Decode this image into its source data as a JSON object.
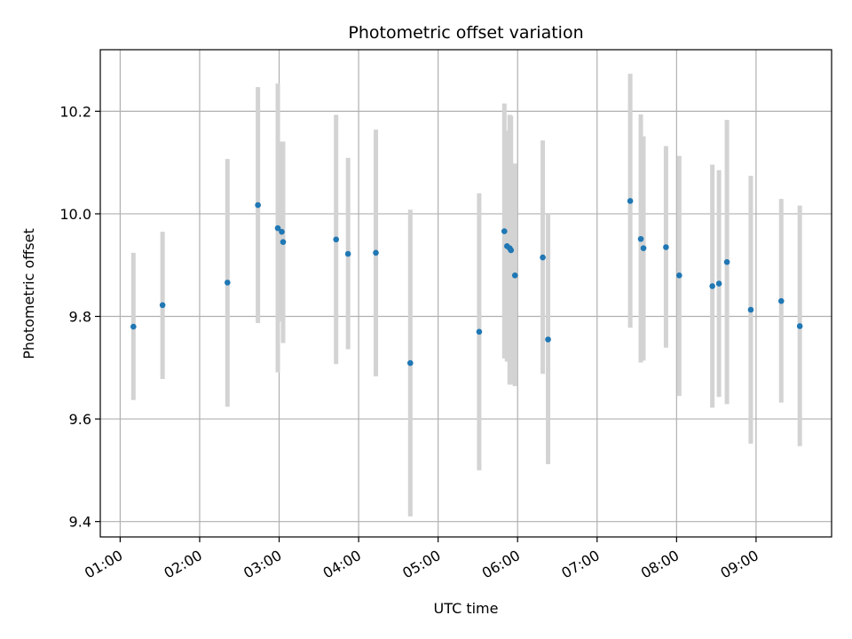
{
  "chart_data": {
    "type": "scatter",
    "title": "Photometric offset variation",
    "xlabel": "UTC time",
    "ylabel": "Photometric offset",
    "xlim": [
      "00:45",
      "09:57"
    ],
    "ylim": [
      9.37,
      10.32
    ],
    "x_ticks": [
      "01:00",
      "02:00",
      "03:00",
      "04:00",
      "05:00",
      "06:00",
      "07:00",
      "08:00",
      "09:00"
    ],
    "y_ticks": [
      "9.4",
      "9.6",
      "9.8",
      "10.0",
      "10.2"
    ],
    "grid": true,
    "legend": "none",
    "point_color": "#1f77b4",
    "errorbar_color": "#d3d3d3",
    "points": [
      {
        "time": "01:10",
        "y": 9.78,
        "err_low": 9.637,
        "err_high": 9.924
      },
      {
        "time": "01:32",
        "y": 9.822,
        "err_low": 9.678,
        "err_high": 9.965
      },
      {
        "time": "02:21",
        "y": 9.866,
        "err_low": 9.624,
        "err_high": 10.107
      },
      {
        "time": "02:44",
        "y": 10.017,
        "err_low": 9.787,
        "err_high": 10.247
      },
      {
        "time": "02:59",
        "y": 9.972,
        "err_low": 9.691,
        "err_high": 10.254
      },
      {
        "time": "03:02",
        "y": 9.965,
        "err_low": 9.79,
        "err_high": 10.141
      },
      {
        "time": "03:03",
        "y": 9.945,
        "err_low": 9.748,
        "err_high": 10.141
      },
      {
        "time": "03:43",
        "y": 9.95,
        "err_low": 9.707,
        "err_high": 10.193
      },
      {
        "time": "03:52",
        "y": 9.922,
        "err_low": 9.736,
        "err_high": 10.109
      },
      {
        "time": "04:13",
        "y": 9.924,
        "err_low": 9.683,
        "err_high": 10.164
      },
      {
        "time": "04:39",
        "y": 9.709,
        "err_low": 9.41,
        "err_high": 10.008
      },
      {
        "time": "05:31",
        "y": 9.77,
        "err_low": 9.5,
        "err_high": 10.04
      },
      {
        "time": "05:50",
        "y": 9.966,
        "err_low": 9.718,
        "err_high": 10.215
      },
      {
        "time": "05:52",
        "y": 9.937,
        "err_low": 9.712,
        "err_high": 10.162
      },
      {
        "time": "05:54",
        "y": 9.933,
        "err_low": 9.667,
        "err_high": 10.193
      },
      {
        "time": "05:55",
        "y": 9.929,
        "err_low": 9.667,
        "err_high": 10.191
      },
      {
        "time": "05:58",
        "y": 9.88,
        "err_low": 9.664,
        "err_high": 10.098
      },
      {
        "time": "06:19",
        "y": 9.915,
        "err_low": 9.688,
        "err_high": 10.143
      },
      {
        "time": "06:23",
        "y": 9.755,
        "err_low": 9.512,
        "err_high": 10.0
      },
      {
        "time": "07:25",
        "y": 10.025,
        "err_low": 9.778,
        "err_high": 10.273
      },
      {
        "time": "07:33",
        "y": 9.951,
        "err_low": 9.71,
        "err_high": 10.194
      },
      {
        "time": "07:35",
        "y": 9.933,
        "err_low": 9.714,
        "err_high": 10.151
      },
      {
        "time": "07:52",
        "y": 9.935,
        "err_low": 9.739,
        "err_high": 10.132
      },
      {
        "time": "08:02",
        "y": 9.88,
        "err_low": 9.645,
        "err_high": 10.113
      },
      {
        "time": "08:27",
        "y": 9.859,
        "err_low": 9.622,
        "err_high": 10.096
      },
      {
        "time": "08:32",
        "y": 9.864,
        "err_low": 9.643,
        "err_high": 10.085
      },
      {
        "time": "08:38",
        "y": 9.906,
        "err_low": 9.629,
        "err_high": 10.183
      },
      {
        "time": "08:56",
        "y": 9.813,
        "err_low": 9.552,
        "err_high": 10.074
      },
      {
        "time": "09:19",
        "y": 9.83,
        "err_low": 9.632,
        "err_high": 10.029
      },
      {
        "time": "09:33",
        "y": 9.781,
        "err_low": 9.547,
        "err_high": 10.016
      }
    ]
  }
}
